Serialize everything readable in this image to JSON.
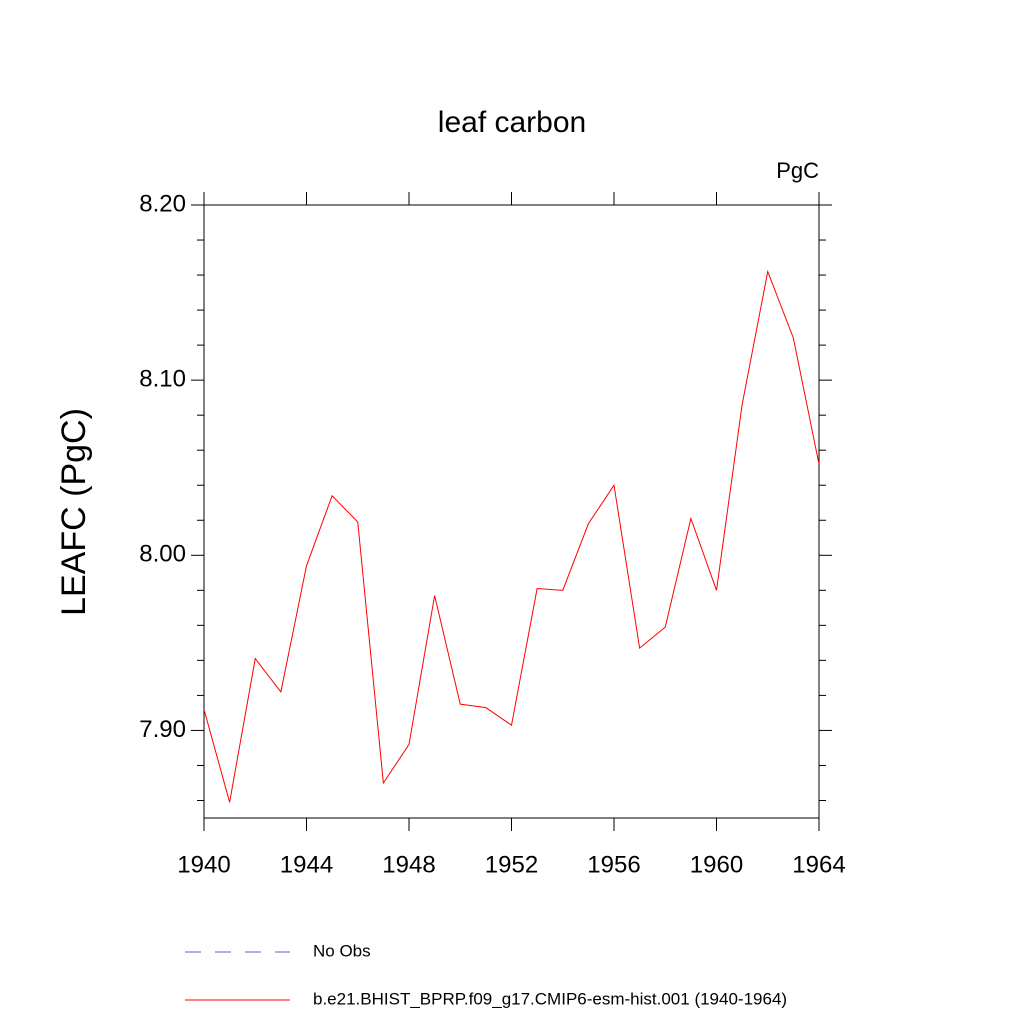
{
  "chart_data": {
    "type": "line",
    "title": "leaf carbon",
    "units": "PgC",
    "y_label": "LEAFC  (PgC)",
    "x": [
      1940,
      1941,
      1942,
      1943,
      1944,
      1945,
      1946,
      1947,
      1948,
      1949,
      1950,
      1951,
      1952,
      1953,
      1954,
      1955,
      1956,
      1957,
      1958,
      1959,
      1960,
      1961,
      1962,
      1963,
      1964
    ],
    "series": [
      {
        "name": "No Obs",
        "color": "#6a5acd",
        "dashed": true,
        "values": [
          null,
          null,
          null,
          null,
          null,
          null,
          null,
          null,
          null,
          null,
          null,
          null,
          null,
          null,
          null,
          null,
          null,
          null,
          null,
          null,
          null,
          null,
          null,
          null,
          null
        ]
      },
      {
        "name": "b.e21.BHIST_BPRP.f09_g17.CMIP6-esm-hist.001 (1940-1964)",
        "color": "#ff0000",
        "dashed": false,
        "values": [
          7.912,
          7.859,
          7.941,
          7.922,
          7.994,
          8.034,
          8.019,
          7.87,
          7.892,
          7.977,
          7.915,
          7.913,
          7.903,
          7.981,
          7.98,
          8.018,
          8.04,
          7.947,
          7.959,
          8.021,
          7.98,
          8.086,
          8.162,
          8.124,
          8.052
        ]
      }
    ],
    "xlim": [
      1940,
      1964
    ],
    "xticks": [
      1940,
      1944,
      1948,
      1952,
      1956,
      1960,
      1964
    ],
    "ylim": [
      7.85,
      8.2
    ],
    "yticks": [
      {
        "value": 7.9,
        "label": "7.90"
      },
      {
        "value": 8.0,
        "label": "8.00"
      },
      {
        "value": 8.1,
        "label": "8.10"
      },
      {
        "value": 8.2,
        "label": "8.20"
      }
    ],
    "yminorticks": [
      7.86,
      7.88,
      7.92,
      7.94,
      7.96,
      7.98,
      8.02,
      8.04,
      8.06,
      8.08,
      8.12,
      8.14,
      8.16,
      8.18
    ]
  }
}
